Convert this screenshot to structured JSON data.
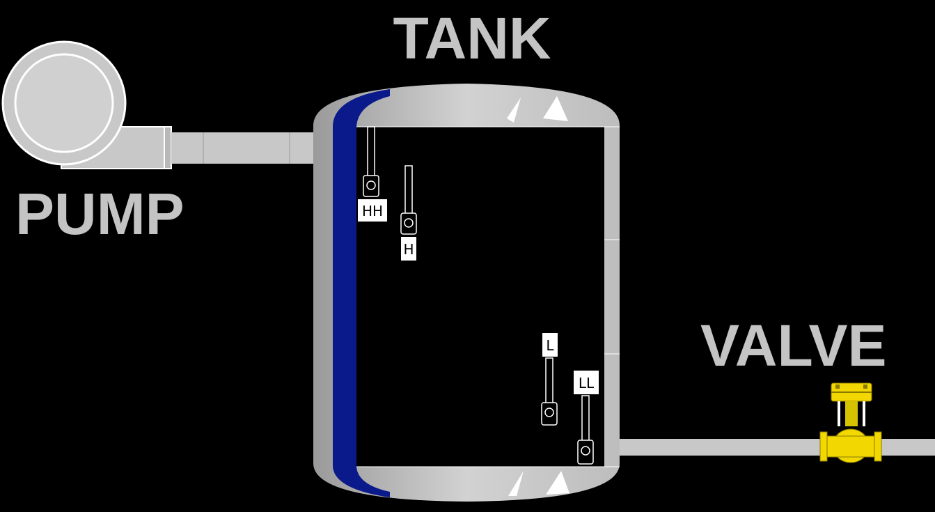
{
  "labels": {
    "tank": "TANK",
    "pump": "PUMP",
    "valve": "VALVE"
  },
  "switches": {
    "hh": "HH",
    "h": "H",
    "l": "L",
    "ll": "LL"
  },
  "colors": {
    "background": "#000000",
    "equipment": "#c8c8c8",
    "equipment_dark": "#8c8c8c",
    "tank_lining": "#0a1a8a",
    "valve": "#f2d800",
    "label_text": "#c4c4c4"
  },
  "icons": [
    "pump-icon",
    "tank-icon",
    "level-switch-icon",
    "valve-icon",
    "pipe-icon"
  ]
}
